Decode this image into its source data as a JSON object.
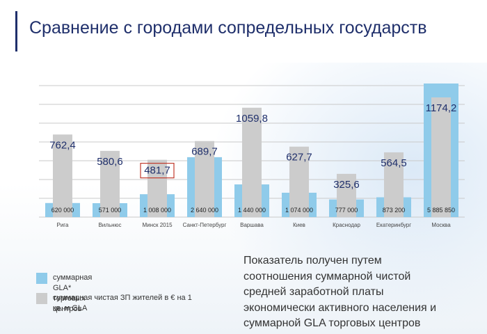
{
  "header": {
    "title": "Сравнение с городами сопредельных государств"
  },
  "colors": {
    "gla": "#8fcbea",
    "salary": "#cccccc",
    "highlight": "#c0392b",
    "label": "#1f2f6b"
  },
  "chart_data": {
    "type": "bar",
    "categories": [
      "Рига",
      "Вильнюс",
      "Минск 2015",
      "Санкт-Петербург",
      "Варшава",
      "Киев",
      "Краснодар",
      "Екатеринбург",
      "Москва"
    ],
    "series": [
      {
        "name": "суммарная GLA* торговых центров",
        "values": [
          620000,
          571000,
          1008000,
          2640000,
          1440000,
          1074000,
          777000,
          873200,
          5885850
        ],
        "labels": [
          "620 000",
          "571 000",
          "1 008 000",
          "2 640 000",
          "1 440 000",
          "1 074 000",
          "777 000",
          "873 200",
          "5 885 850"
        ]
      },
      {
        "name": "суммарная чистая ЗП жителей в € на 1 кв. м GLA",
        "values": [
          762.4,
          580.6,
          481.7,
          689.7,
          1059.8,
          627.7,
          325.6,
          564.5,
          1174.2
        ],
        "labels": [
          "762,4",
          "580,6",
          "481,7",
          "689,7",
          "1059,8",
          "627,7",
          "325,6",
          "564,5",
          "1174,2"
        ]
      }
    ],
    "highlighted_category": "Минск 2015",
    "grid": true
  },
  "legend": {
    "items": [
      {
        "label": "суммарная GLA* торговых центров"
      },
      {
        "label": "суммарная чистая ЗП жителей в € на 1 кв. м GLA"
      }
    ]
  },
  "note": {
    "lines": [
      "Показатель получен путем",
      "соотношения суммарной чистой",
      "средней заработной платы",
      "экономически активного населения и",
      "суммарной GLA торговых центров"
    ]
  }
}
